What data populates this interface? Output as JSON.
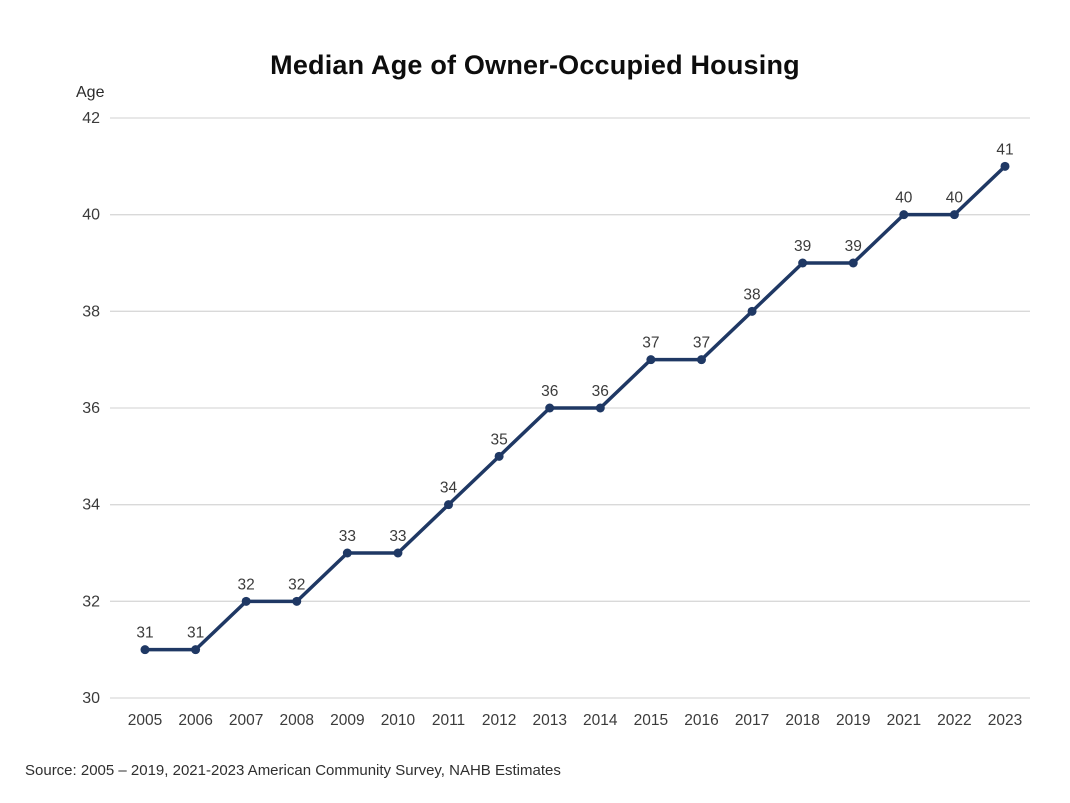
{
  "chart": {
    "title": "Median Age of Owner-Occupied Housing",
    "ylabel": "Age"
  },
  "chart_data": {
    "type": "line",
    "title": "Median Age of Owner-Occupied Housing",
    "xlabel": "",
    "ylabel": "Age",
    "categories": [
      "2005",
      "2006",
      "2007",
      "2008",
      "2009",
      "2010",
      "2011",
      "2012",
      "2013",
      "2014",
      "2015",
      "2016",
      "2017",
      "2018",
      "2019",
      "2021",
      "2022",
      "2023"
    ],
    "values": [
      31,
      31,
      32,
      32,
      33,
      33,
      34,
      35,
      36,
      36,
      37,
      37,
      38,
      39,
      39,
      40,
      40,
      41
    ],
    "ylim": [
      30,
      42
    ],
    "ytick_step": 2,
    "yticks": [
      30,
      32,
      34,
      36,
      38,
      40,
      42
    ],
    "grid": true,
    "legend": "none",
    "data_labels": true,
    "colors": {
      "line": "#1f3864",
      "marker": "#1f3864",
      "gridline": "#d9d9d9",
      "tick_label": "#3b3b3b",
      "data_label": "#3b3b3b"
    }
  },
  "source": "Source: 2005 – 2019, 2021-2023 American Community Survey, NAHB Estimates"
}
